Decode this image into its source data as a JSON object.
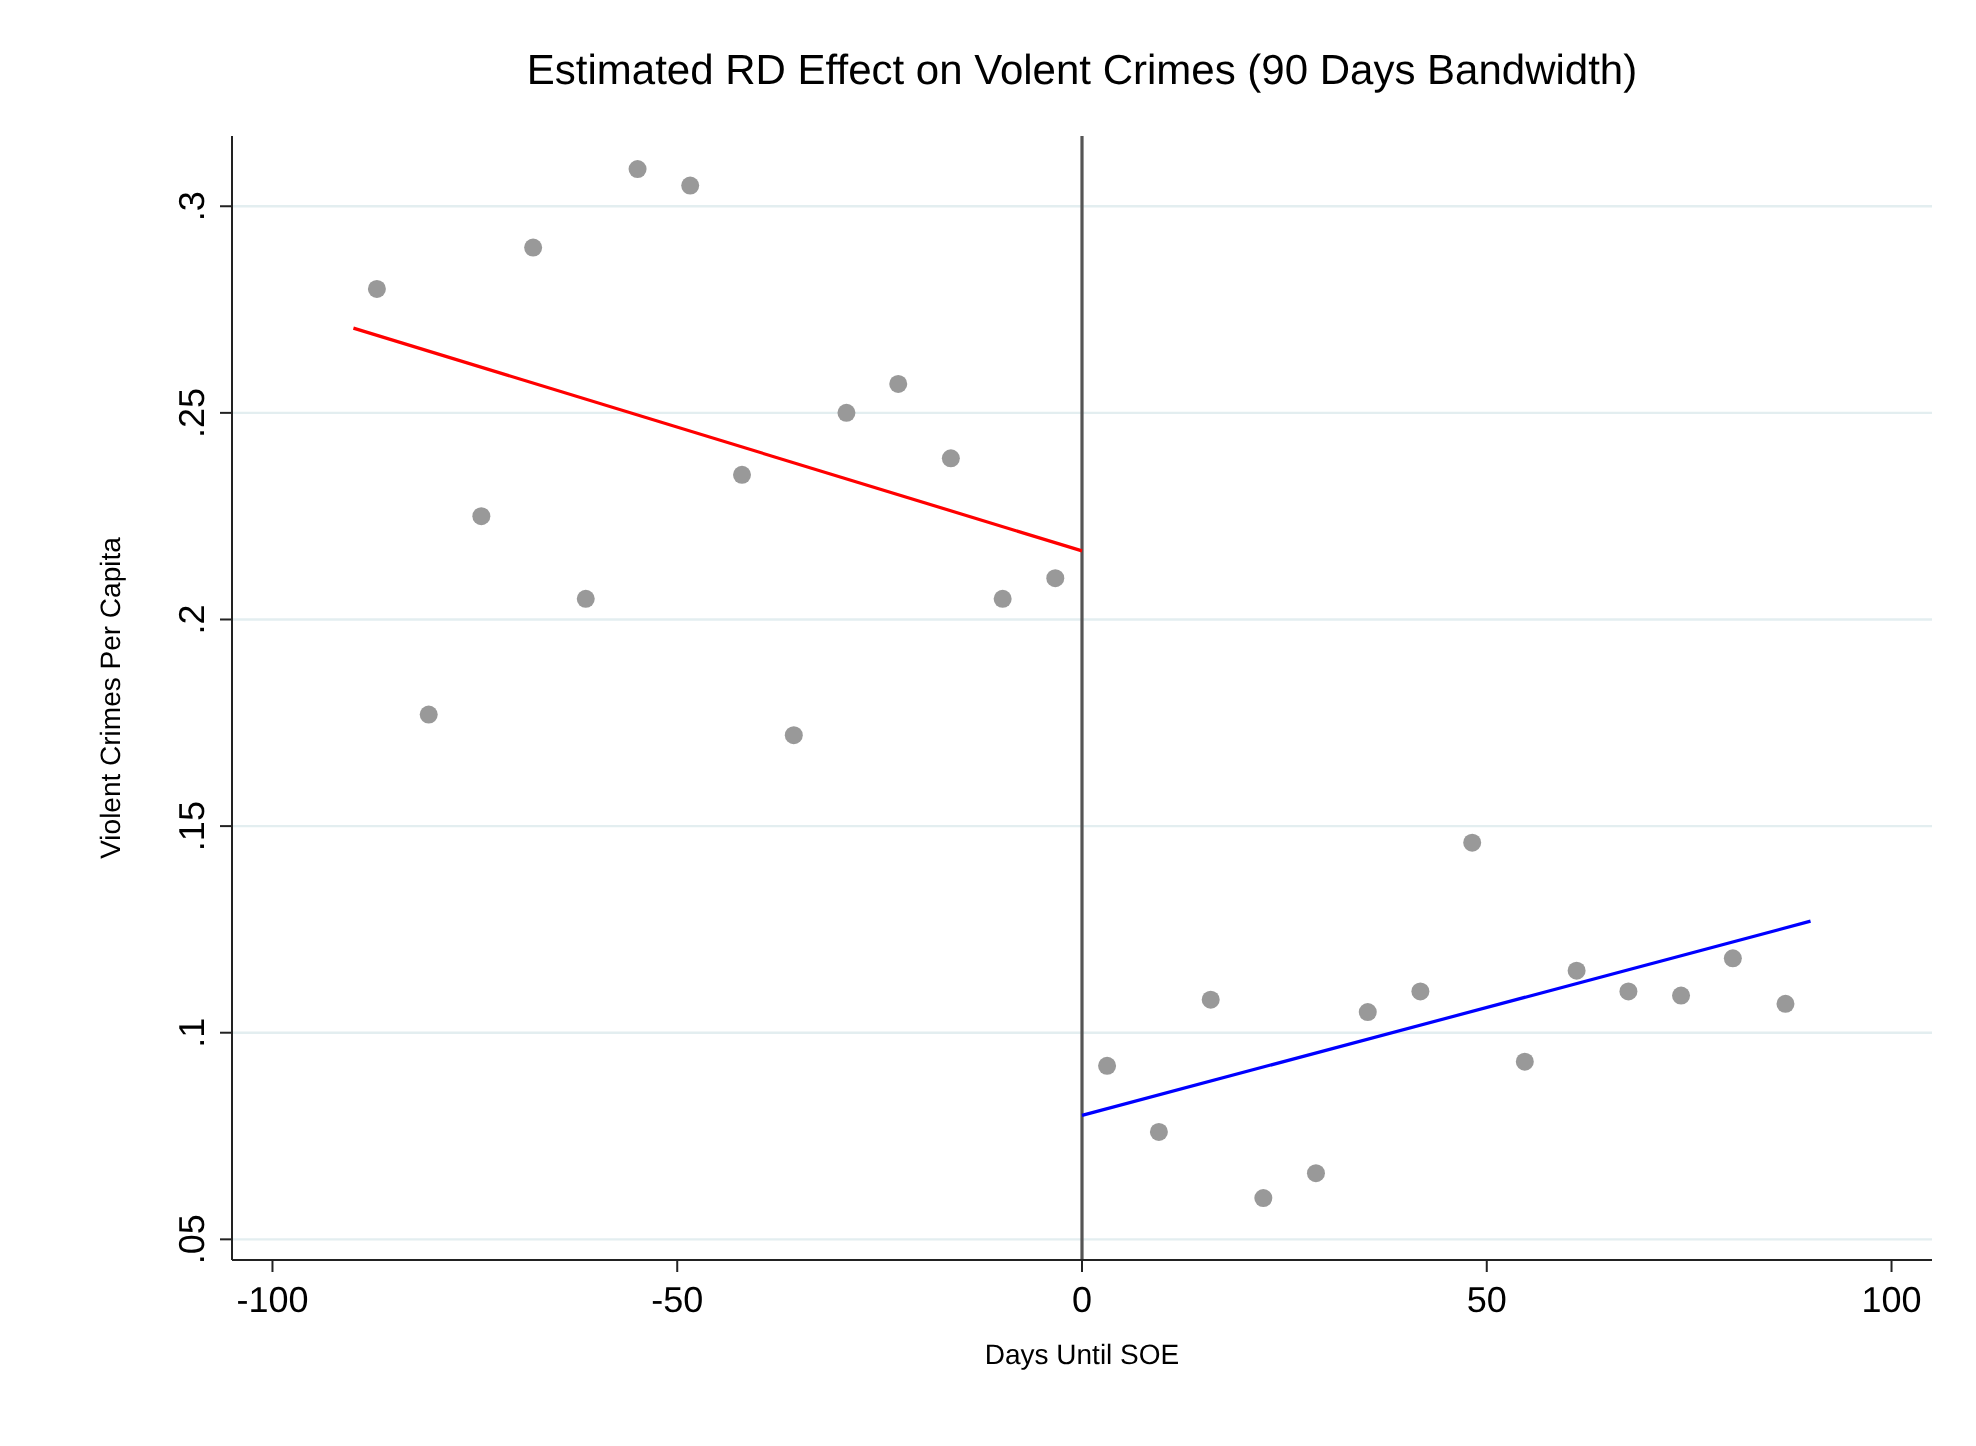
{
  "chart_data": {
    "type": "scatter",
    "title": "Estimated RD Effect on Volent Crimes (90 Days Bandwidth)",
    "xlabel": "Days Until SOE",
    "ylabel": "Violent Crimes Per Capita",
    "xlim": [
      -105,
      105
    ],
    "xticks": [
      -100,
      -50,
      0,
      50,
      100
    ],
    "ylim": [
      0.045,
      0.317
    ],
    "yticks": [
      {
        "value": 0.05,
        "label": ".05"
      },
      {
        "value": 0.1,
        "label": ".1"
      },
      {
        "value": 0.15,
        "label": ".15"
      },
      {
        "value": 0.2,
        "label": ".2"
      },
      {
        "value": 0.25,
        "label": ".25"
      },
      {
        "value": 0.3,
        "label": ".3"
      }
    ],
    "grid": "y",
    "ref_lines": [
      {
        "axis": "x",
        "value": 0,
        "color": "#555555"
      }
    ],
    "series": [
      {
        "marker": "circle",
        "color": "#999999",
        "x": [
          -87.1,
          -80.7,
          -74.2,
          -67.8,
          -61.3,
          -54.9,
          -48.4,
          -42,
          -35.6,
          -29.1,
          -22.7,
          -16.2,
          -9.8,
          -3.3,
          3.1,
          9.5,
          15.9,
          22.4,
          28.9,
          35.3,
          41.8,
          48.2,
          54.7,
          61.1,
          67.5,
          74,
          80.4,
          86.9
        ],
        "values": [
          0.28,
          0.177,
          0.225,
          0.29,
          0.205,
          0.309,
          0.305,
          0.235,
          0.172,
          0.25,
          0.257,
          0.239,
          0.205,
          0.21,
          0.092,
          0.076,
          0.108,
          0.06,
          0.066,
          0.105,
          0.11,
          0.146,
          0.093,
          0.115,
          0.11,
          0.109,
          0.118,
          0.107
        ]
      },
      {
        "type": "line",
        "color": "#ff0000",
        "x": [
          -90,
          0
        ],
        "values": [
          0.2705,
          0.2166
        ]
      },
      {
        "type": "line",
        "color": "#0000ff",
        "x": [
          0,
          90
        ],
        "values": [
          0.08,
          0.127
        ]
      }
    ]
  }
}
